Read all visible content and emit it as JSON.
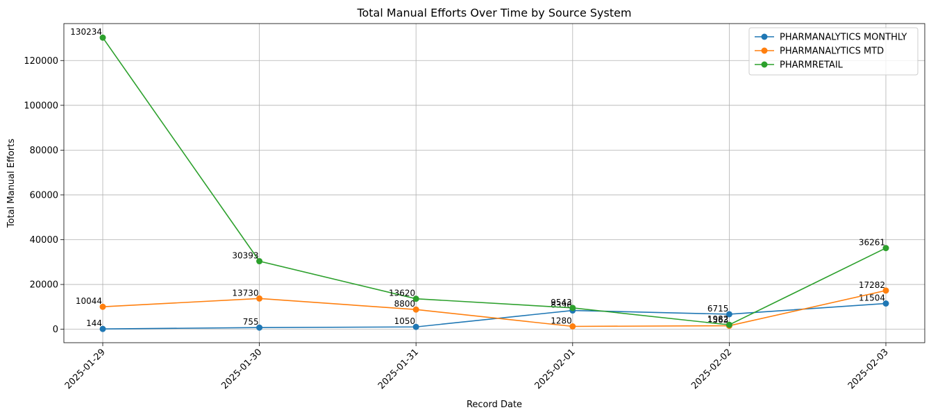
{
  "chart_data": {
    "type": "line",
    "title": "Total Manual Efforts Over Time by Source System",
    "xlabel": "Record Date",
    "ylabel": "Total Manual Efforts",
    "categories": [
      "2025-01-29",
      "2025-01-30",
      "2025-01-31",
      "2025-02-01",
      "2025-02-02",
      "2025-02-03"
    ],
    "ylim": [
      -6000,
      136500
    ],
    "yticks": [
      0,
      20000,
      40000,
      60000,
      80000,
      100000,
      120000
    ],
    "grid": true,
    "legend_position": "top-right",
    "series": [
      {
        "name": "PHARMANALYTICS MONTHLY",
        "color": "#1f77b4",
        "values": [
          144,
          755,
          1050,
          8396,
          6715,
          11504
        ],
        "labels": [
          "144",
          "755",
          "1050",
          "8396",
          "6715",
          "11504"
        ]
      },
      {
        "name": "PHARMANALYTICS MTD",
        "color": "#ff7f0e",
        "values": [
          10044,
          13730,
          8800,
          1280,
          1563,
          17282
        ],
        "labels": [
          "10044",
          "13730",
          "8800",
          "1280",
          "1563",
          "17282"
        ]
      },
      {
        "name": "PHARMRETAIL",
        "color": "#2ca02c",
        "values": [
          130234,
          30393,
          13620,
          9543,
          1982,
          36261
        ],
        "labels": [
          "130234",
          "30393",
          "13620",
          "9543",
          "1982",
          "36261"
        ]
      }
    ]
  }
}
